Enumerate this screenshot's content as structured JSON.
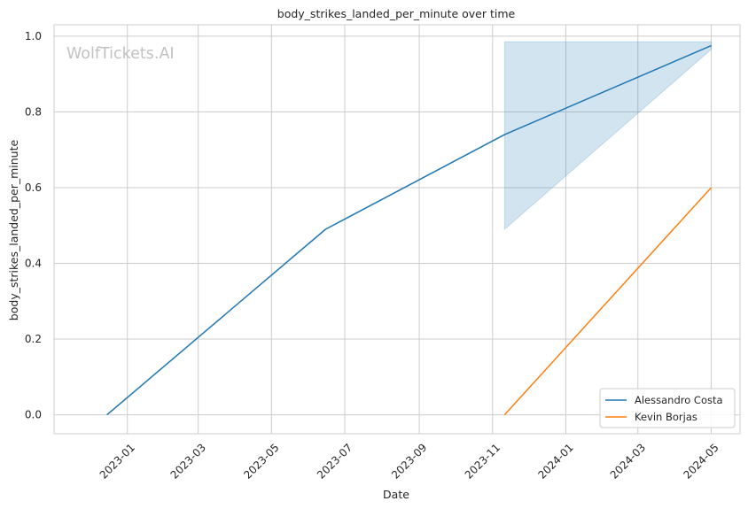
{
  "chart_data": {
    "type": "line",
    "title": "body_strikes_landed_per_minute over time",
    "xlabel": "Date",
    "ylabel": "body_strikes_landed_per_minute",
    "watermark": "WolfTickets.AI",
    "x_ticks": [
      "2023-01",
      "2023-03",
      "2023-05",
      "2023-07",
      "2023-09",
      "2023-11",
      "2024-01",
      "2024-03",
      "2024-05"
    ],
    "y_ticks": [
      "0.0",
      "0.2",
      "0.4",
      "0.6",
      "0.8",
      "1.0"
    ],
    "ylim": [
      -0.05,
      1.03
    ],
    "xlim": [
      "2022-11-01",
      "2024-05-25"
    ],
    "grid": true,
    "legend_position": "bottom-right",
    "series": [
      {
        "name": "Alessandro Costa",
        "color": "#1f77b4",
        "points": [
          {
            "x": "2022-12-15",
            "y": 0.0
          },
          {
            "x": "2023-06-15",
            "y": 0.49
          },
          {
            "x": "2023-11-11",
            "y": 0.74
          },
          {
            "x": "2024-05-01",
            "y": 0.975
          }
        ],
        "band": [
          {
            "x": "2023-11-11",
            "low": 0.49,
            "high": 0.985
          },
          {
            "x": "2024-05-01",
            "low": 0.965,
            "high": 0.985
          }
        ]
      },
      {
        "name": "Kevin Borjas",
        "color": "#ff7f0e",
        "points": [
          {
            "x": "2023-11-11",
            "y": 0.0
          },
          {
            "x": "2024-05-01",
            "y": 0.6
          }
        ]
      }
    ]
  }
}
